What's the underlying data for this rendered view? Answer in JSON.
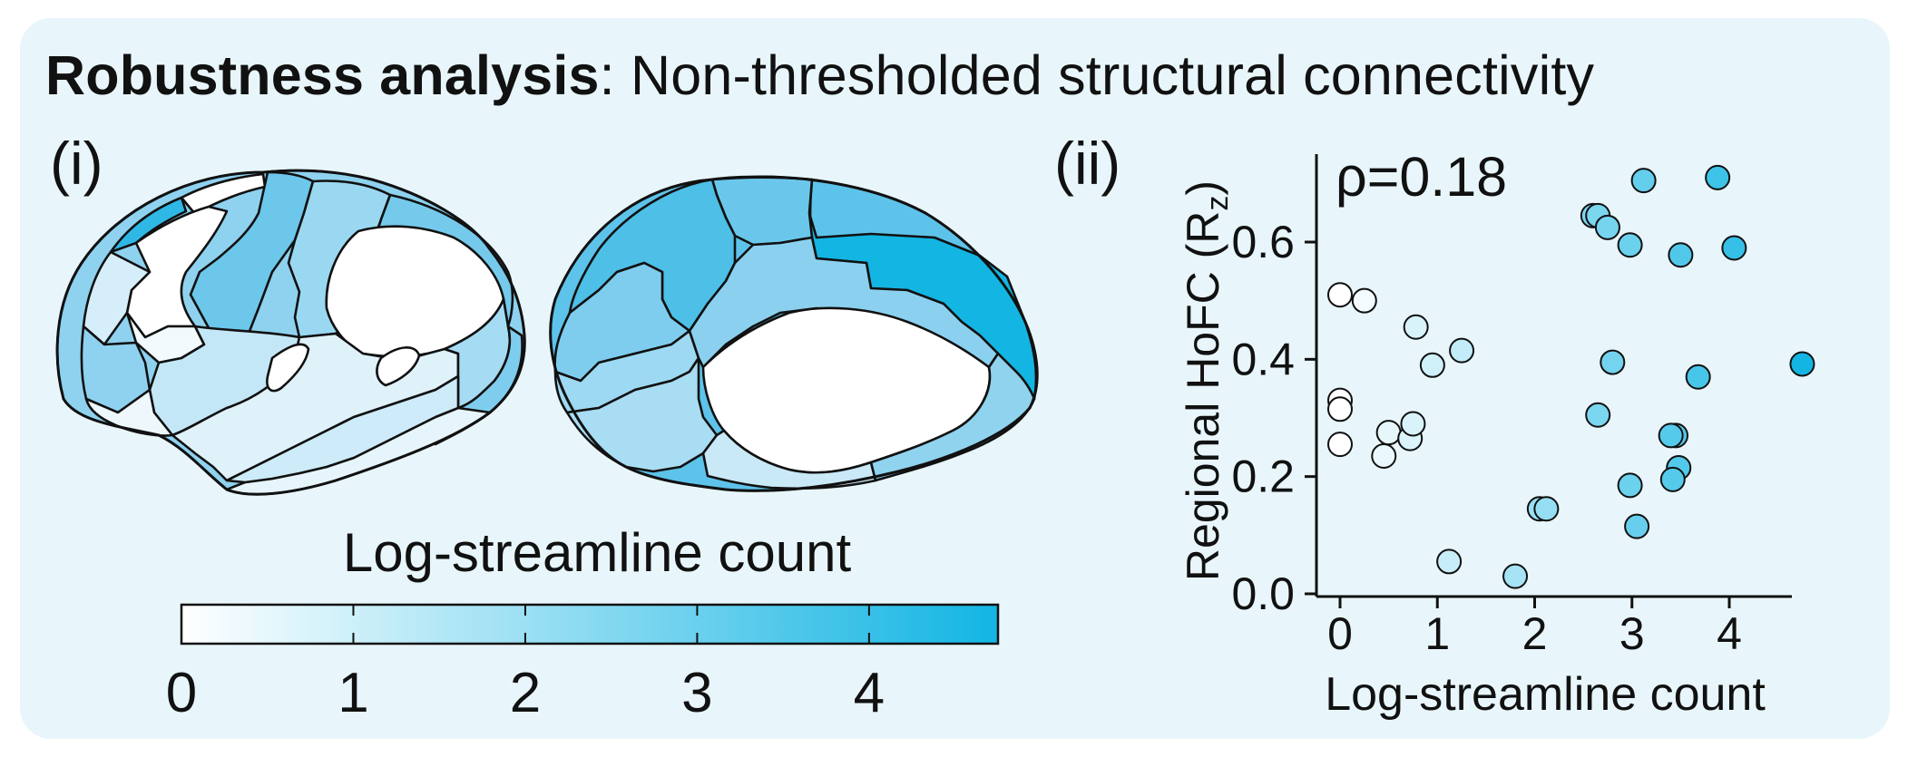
{
  "title": {
    "bold": "Robustness analysis",
    "rest": ": Non-thresholded structural connectivity"
  },
  "panel_i": {
    "label": "(i)",
    "colorbar": {
      "label": "Log-streamline count",
      "ticks": [
        "0",
        "1",
        "2",
        "3",
        "4"
      ],
      "range": [
        0,
        4.75
      ],
      "colors": [
        "#ffffff",
        "#13b5e3"
      ]
    }
  },
  "panel_ii": {
    "label": "(ii)",
    "annotation": "ρ=0.18"
  },
  "chart_data": {
    "type": "scatter",
    "xlabel": "Log-streamline count",
    "ylabel": "Regional HoFC (R",
    "ylabel_sub": "z",
    "ylabel_close": ")",
    "xlim": [
      -0.15,
      4.85
    ],
    "ylim": [
      -0.01,
      0.74
    ],
    "xticks": [
      0,
      1,
      2,
      3,
      4
    ],
    "yticks": [
      0.0,
      0.2,
      0.4,
      0.6
    ],
    "ytick_labels": [
      "0.0",
      "0.2",
      "0.4",
      "0.6"
    ],
    "points": [
      {
        "x": 0.0,
        "y": 0.51
      },
      {
        "x": 0.25,
        "y": 0.5
      },
      {
        "x": 0.0,
        "y": 0.33
      },
      {
        "x": 0.0,
        "y": 0.315
      },
      {
        "x": 0.0,
        "y": 0.255
      },
      {
        "x": 0.45,
        "y": 0.235
      },
      {
        "x": 0.5,
        "y": 0.275
      },
      {
        "x": 0.72,
        "y": 0.265
      },
      {
        "x": 0.75,
        "y": 0.29
      },
      {
        "x": 0.95,
        "y": 0.39
      },
      {
        "x": 0.78,
        "y": 0.455
      },
      {
        "x": 1.25,
        "y": 0.415
      },
      {
        "x": 1.12,
        "y": 0.055
      },
      {
        "x": 1.8,
        "y": 0.03
      },
      {
        "x": 2.05,
        "y": 0.145
      },
      {
        "x": 2.12,
        "y": 0.145
      },
      {
        "x": 2.6,
        "y": 0.645
      },
      {
        "x": 2.65,
        "y": 0.645
      },
      {
        "x": 2.75,
        "y": 0.625
      },
      {
        "x": 2.98,
        "y": 0.595
      },
      {
        "x": 3.12,
        "y": 0.705
      },
      {
        "x": 3.5,
        "y": 0.578
      },
      {
        "x": 3.88,
        "y": 0.71
      },
      {
        "x": 4.05,
        "y": 0.59
      },
      {
        "x": 2.8,
        "y": 0.395
      },
      {
        "x": 2.65,
        "y": 0.305
      },
      {
        "x": 3.68,
        "y": 0.37
      },
      {
        "x": 4.75,
        "y": 0.392
      },
      {
        "x": 3.45,
        "y": 0.27
      },
      {
        "x": 3.4,
        "y": 0.27
      },
      {
        "x": 3.48,
        "y": 0.215
      },
      {
        "x": 3.42,
        "y": 0.195
      },
      {
        "x": 2.98,
        "y": 0.185
      },
      {
        "x": 3.05,
        "y": 0.115
      }
    ]
  }
}
